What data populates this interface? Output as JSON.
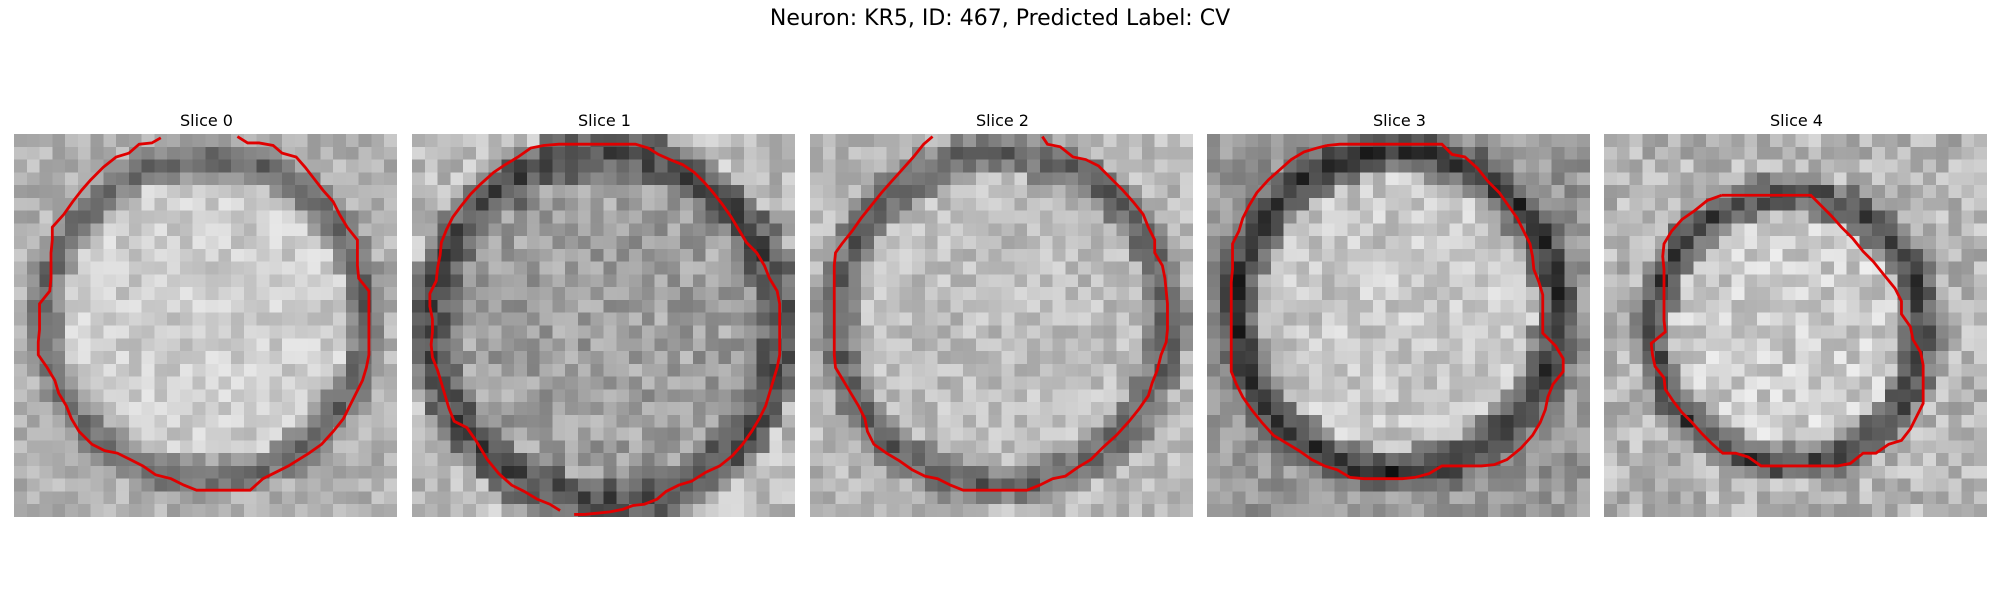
{
  "figure": {
    "title": "Neuron: KR5, ID: 467, Predicted Label: CV"
  },
  "panels": [
    {
      "title": "Slice 0"
    },
    {
      "title": "Slice 1"
    },
    {
      "title": "Slice 2"
    },
    {
      "title": "Slice 3"
    },
    {
      "title": "Slice 4"
    }
  ],
  "contour_color": "#e00000"
}
